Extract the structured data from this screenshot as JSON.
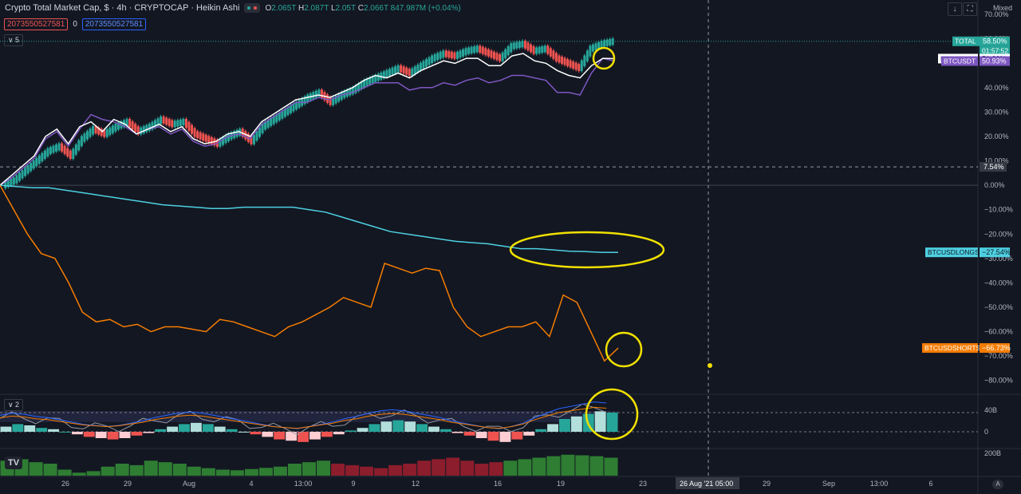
{
  "header": {
    "title": "Crypto Total Market Cap, $ · 4h · CRYPTOCAP · Heikin Ashi",
    "o_label": "O",
    "o_value": "2.065T",
    "h_label": "H",
    "h_value": "2.087T",
    "l_label": "L",
    "l_value": "2.05T",
    "c_label": "C",
    "c_value": "2.066T",
    "change": "847.987M (+0.04%)"
  },
  "inputs": {
    "input1": "2073550527581",
    "zero": "0",
    "input2": "2073550527581"
  },
  "pane1_collapse": "5",
  "pane2_collapse": "2",
  "mixed_label": "Mixed",
  "logo": "TV",
  "auto_label": "A",
  "colors": {
    "background": "#131722",
    "up": "#26a69a",
    "down": "#ef5350",
    "btcq": "#ffffff",
    "btcusdt": "#7e57c2",
    "longs": "#4dd0e1",
    "shorts": "#f57c00",
    "highlight": "#f0e000"
  },
  "chart_data": [
    {
      "type": "line",
      "title": "Crypto Total Market Cap, $ · 4h · CRYPTOCAP · Heikin Ashi",
      "scale": "percent",
      "ylim": [
        -85,
        72
      ],
      "ytick_labels": [
        "70.00%",
        "60.00%",
        "50.00%",
        "40.00%",
        "30.00%",
        "20.00%",
        "10.00%",
        "0.00%",
        "−10.00%",
        "−20.00%",
        "−30.00%",
        "−40.00%",
        "−50.00%",
        "−60.00%",
        "−70.00%",
        "−80.00%"
      ],
      "yticks": [
        70,
        60,
        50,
        40,
        30,
        20,
        10,
        0,
        -10,
        -20,
        -30,
        -40,
        -50,
        -60,
        -70,
        -80
      ],
      "x_tick_labels": [
        "26",
        "29",
        "Aug",
        "4",
        "13:00",
        "9",
        "12",
        "16",
        "19",
        "23",
        "29",
        "Sep",
        "13:00",
        "6"
      ],
      "crosshair_x_label": "26 Aug '21   05:00",
      "crosshair_y_label": "7.54%",
      "series": [
        {
          "name": "TOTAL",
          "label_value": "58.50%",
          "label_time": "01:57:52",
          "high_label": "59.05%",
          "values": [
            0,
            2,
            6,
            10,
            14,
            16,
            12,
            19,
            23,
            21,
            24,
            26,
            22,
            24,
            27,
            25,
            26,
            21,
            19,
            17,
            20,
            22,
            18,
            24,
            27,
            30,
            33,
            36,
            38,
            34,
            37,
            39,
            42,
            44,
            46,
            48,
            46,
            49,
            52,
            54,
            53,
            55,
            56,
            54,
            52,
            57,
            58,
            55,
            56,
            52,
            50,
            48,
            56,
            58,
            59
          ]
        },
        {
          "name": "BTCQ2021",
          "label_value": "51.88%",
          "values": [
            0,
            4,
            8,
            12,
            20,
            23,
            17,
            24,
            26,
            22,
            27,
            25,
            21,
            23,
            25,
            22,
            24,
            19,
            17,
            18,
            21,
            22,
            20,
            26,
            29,
            32,
            35,
            36,
            37,
            36,
            38,
            40,
            43,
            45,
            44,
            46,
            44,
            47,
            49,
            51,
            50,
            52,
            52,
            49,
            49,
            53,
            54,
            51,
            50,
            47,
            45,
            44,
            49,
            52,
            51.9
          ]
        },
        {
          "name": "BTCUSDT",
          "label_value": "50.93%",
          "values": [
            0,
            3,
            7,
            11,
            19,
            22,
            16,
            23,
            29,
            27,
            26,
            24,
            21,
            23,
            24,
            21,
            23,
            18,
            16,
            17,
            20,
            21,
            19,
            25,
            28,
            31,
            34,
            34,
            36,
            35,
            37,
            38,
            40,
            42,
            42,
            42,
            39,
            40,
            40,
            42,
            41,
            43,
            44,
            42,
            43,
            45,
            45,
            44,
            43,
            38,
            38,
            37,
            46,
            52,
            50.9
          ]
        },
        {
          "name": "BTCUSDLONGS",
          "label_value": "−27.54%",
          "values": [
            0,
            -0.5,
            -1,
            -1,
            -2,
            -3,
            -4,
            -5,
            -6,
            -7,
            -8,
            -8.5,
            -9,
            -9.5,
            -9.5,
            -9,
            -9,
            -9,
            -9,
            -10,
            -11,
            -13,
            -15,
            -17,
            -19,
            -20,
            -21,
            -22,
            -23,
            -23.5,
            -24,
            -25,
            -26,
            -26,
            -26.5,
            -27,
            -27.2,
            -27.5,
            -27.5
          ]
        },
        {
          "name": "BTCUSDSHORTS",
          "label_value": "−66.73%",
          "values": [
            0,
            -10,
            -20,
            -28,
            -30,
            -40,
            -52,
            -56,
            -55,
            -58,
            -57,
            -60,
            -58,
            -58,
            -59,
            -60,
            -55,
            -56,
            -58,
            -60,
            -62,
            -58,
            -56,
            -53,
            -50,
            -46,
            -48,
            -50,
            -32,
            -34,
            -36,
            -34,
            -35,
            -50,
            -58,
            -62,
            -60,
            -58,
            -58,
            -56,
            -62,
            -45,
            -48,
            -60,
            -72,
            -66.7
          ]
        }
      ]
    },
    {
      "type": "bar",
      "title": "Oscillator pane",
      "ytick_labels": [
        "40B",
        "0"
      ],
      "yticks": [
        40,
        0
      ],
      "values": [
        4,
        6,
        5,
        3,
        2,
        0,
        -2,
        -4,
        -5,
        -6,
        -5,
        -3,
        -1,
        2,
        4,
        6,
        7,
        6,
        4,
        2,
        0,
        -2,
        -4,
        -6,
        -7,
        -8,
        -6,
        -4,
        -2,
        1,
        3,
        6,
        8,
        9,
        8,
        6,
        4,
        2,
        -1,
        -3,
        -5,
        -7,
        -8,
        -6,
        -3,
        2,
        6,
        10,
        12,
        14,
        16,
        15
      ]
    },
    {
      "type": "bar",
      "title": "Volume pane",
      "ytick_labels": [
        "200B"
      ],
      "yticks": [
        200
      ],
      "values": [
        210,
        215,
        205,
        200,
        180,
        170,
        175,
        190,
        200,
        195,
        210,
        205,
        200,
        190,
        185,
        180,
        178,
        182,
        186,
        190,
        200,
        205,
        210,
        200,
        195,
        190,
        185,
        195,
        200,
        210,
        215,
        220,
        210,
        200,
        205,
        210,
        215,
        220,
        225,
        230,
        228,
        225,
        220
      ]
    }
  ]
}
